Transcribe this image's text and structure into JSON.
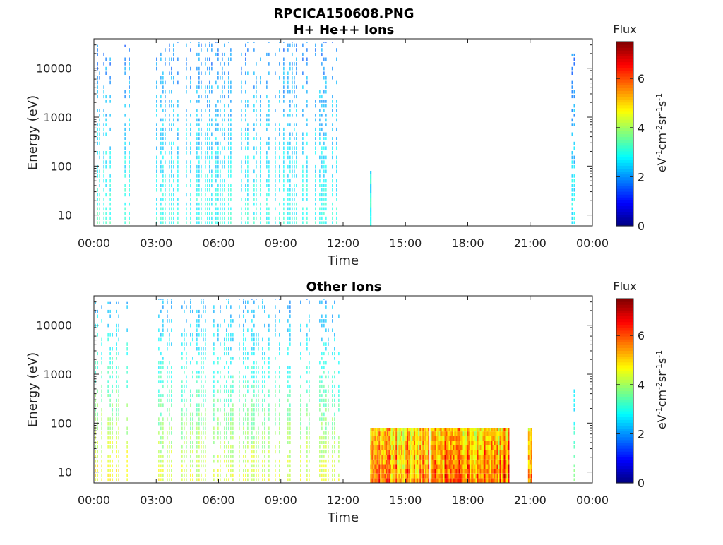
{
  "figure": {
    "file_title": "RPCICA150608.PNG"
  },
  "colorbar": {
    "label": "Flux",
    "unit_parts": [
      "eV",
      "-1",
      "cm",
      "-2",
      "sr",
      "-1",
      "s",
      "-1"
    ]
  },
  "chart_data": [
    {
      "type": "heatmap",
      "title": "H+ He++ Ions",
      "xlabel": "Time",
      "ylabel": "Energy (eV)",
      "x_ticks": [
        "00:00",
        "03:00",
        "06:00",
        "09:00",
        "12:00",
        "15:00",
        "18:00",
        "21:00",
        "00:00"
      ],
      "x_range_hours": [
        0,
        24
      ],
      "y_scale": "log",
      "y_range": [
        6,
        40000
      ],
      "y_ticks": [
        10,
        100,
        1000,
        10000
      ],
      "y_tick_labels": [
        "10",
        "100",
        "1000",
        "10000"
      ],
      "colorscale": "jet",
      "color_range": [
        0,
        7.5
      ],
      "color_ticks": [
        "0",
        "2",
        "4",
        "6"
      ],
      "data_intervals": [
        {
          "start_h": 0.05,
          "end_h": 1.7,
          "emin": 6,
          "emax": 30000,
          "low_flux": 3.2,
          "high_flux": 1.8
        },
        {
          "start_h": 3.0,
          "end_h": 11.8,
          "emin": 6,
          "emax": 35000,
          "low_flux": 3.0,
          "high_flux": 1.8
        },
        {
          "start_h": 13.3,
          "end_h": 13.35,
          "emin": 6,
          "emax": 80,
          "low_flux": 2.8,
          "high_flux": 2.5
        },
        {
          "start_h": 23.0,
          "end_h": 23.2,
          "emin": 6,
          "emax": 20000,
          "low_flux": 2.8,
          "high_flux": 1.8
        }
      ]
    },
    {
      "type": "heatmap",
      "title": "Other Ions",
      "xlabel": "Time",
      "ylabel": "Energy (eV)",
      "x_ticks": [
        "00:00",
        "03:00",
        "06:00",
        "09:00",
        "12:00",
        "15:00",
        "18:00",
        "21:00",
        "00:00"
      ],
      "x_range_hours": [
        0,
        24
      ],
      "y_scale": "log",
      "y_range": [
        6,
        40000
      ],
      "y_ticks": [
        10,
        100,
        1000,
        10000
      ],
      "y_tick_labels": [
        "10",
        "100",
        "1000",
        "10000"
      ],
      "colorscale": "jet",
      "color_range": [
        0,
        7.5
      ],
      "color_ticks": [
        "0",
        "2",
        "4",
        "6"
      ],
      "data_intervals": [
        {
          "start_h": 0.05,
          "end_h": 1.7,
          "emin": 6,
          "emax": 30000,
          "low_flux": 4.8,
          "high_flux": 2.2
        },
        {
          "start_h": 3.0,
          "end_h": 11.8,
          "emin": 6,
          "emax": 35000,
          "low_flux": 4.5,
          "high_flux": 2.0
        },
        {
          "start_h": 13.3,
          "end_h": 16.1,
          "emin": 6,
          "emax": 80,
          "low_flux": 5.5,
          "high_flux": 4.8
        },
        {
          "start_h": 16.2,
          "end_h": 20.0,
          "emin": 6,
          "emax": 80,
          "low_flux": 5.8,
          "high_flux": 5.0
        },
        {
          "start_h": 20.9,
          "end_h": 21.1,
          "emin": 6,
          "emax": 80,
          "low_flux": 5.5,
          "high_flux": 4.8
        },
        {
          "start_h": 23.0,
          "end_h": 23.2,
          "emin": 6,
          "emax": 600,
          "low_flux": 3.5,
          "high_flux": 2.5
        }
      ]
    }
  ]
}
